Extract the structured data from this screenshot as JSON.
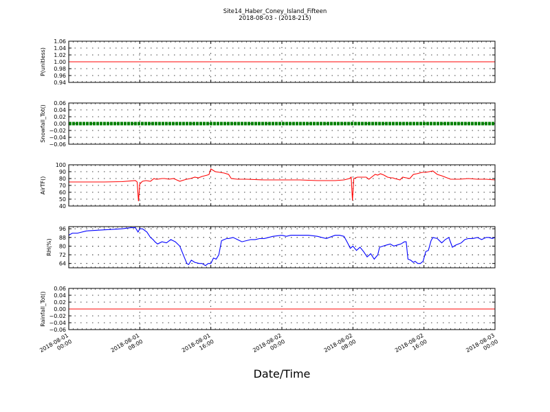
{
  "title": "Site14_Haber_Coney_Island_Fifteen",
  "subtitle": "2018-08-03 - (2018-215)",
  "xlabel": "Date/Time",
  "x_ticks": [
    [
      "2018-08-01",
      "00:00"
    ],
    [
      "2018-08-01",
      "08:00"
    ],
    [
      "2018-08-01",
      "16:00"
    ],
    [
      "2018-08-02",
      "00:00"
    ],
    [
      "2018-08-02",
      "08:00"
    ],
    [
      "2018-08-02",
      "16:00"
    ],
    [
      "2018-08-03",
      "00:00"
    ]
  ],
  "colors": {
    "red": "#ff0000",
    "green": "#008000",
    "blue": "#0000ff"
  },
  "chart_data": [
    {
      "type": "line",
      "ylabel": "P(unitless)",
      "xlim": [
        "2018-08-01 00:00",
        "2018-08-03 00:00"
      ],
      "ylim": [
        0.94,
        1.06
      ],
      "y_ticks": [
        "1.06",
        "1.04",
        "1.02",
        "1.00",
        "0.98",
        "0.96",
        "0.94"
      ],
      "grid": true,
      "color": "#ff0000",
      "marker": "line",
      "x_hours": [
        0,
        48
      ],
      "values": [
        1.0,
        1.0
      ]
    },
    {
      "type": "line",
      "ylabel": "Snowfall_Tot()",
      "xlim": [
        "2018-08-01 00:00",
        "2018-08-03 00:00"
      ],
      "ylim": [
        -0.06,
        0.06
      ],
      "y_ticks": [
        "0.06",
        "0.04",
        "0.02",
        "0.00",
        "−0.02",
        "−0.04",
        "−0.06"
      ],
      "grid": true,
      "color": "#008000",
      "marker": "thick",
      "x_hours": [
        0,
        48
      ],
      "values": [
        0.0,
        0.0
      ]
    },
    {
      "type": "line",
      "ylabel": "AirTF()",
      "xlim": [
        "2018-08-01 00:00",
        "2018-08-03 00:00"
      ],
      "ylim": [
        40,
        100
      ],
      "y_ticks": [
        "100",
        "90",
        "80",
        "70",
        "60",
        "50",
        "40"
      ],
      "grid": true,
      "color": "#ff0000",
      "marker": "line",
      "x_hours": [
        0,
        2,
        4,
        6,
        7.5,
        7.7,
        7.85,
        8.0,
        8.3,
        8.7,
        9.2,
        9.6,
        9.8,
        10.0,
        10.5,
        10.8,
        11.3,
        11.8,
        12.5,
        13.0,
        13.3,
        13.7,
        14.2,
        14.6,
        15.0,
        15.3,
        15.6,
        15.8,
        16.0,
        16.5,
        17.0,
        17.5,
        18.0,
        18.3,
        19.0,
        20.0,
        22.0,
        24.0,
        26.0,
        28.0,
        30.0,
        31.0,
        31.6,
        31.8,
        31.95,
        32.1,
        32.5,
        33.0,
        33.5,
        33.8,
        34.1,
        34.5,
        34.8,
        35.1,
        35.5,
        35.9,
        36.3,
        36.5,
        36.7,
        37.0,
        37.3,
        37.6,
        38.0,
        38.4,
        38.8,
        39.2,
        39.5,
        39.8,
        40.2,
        40.6,
        41.0,
        41.5,
        42.0,
        43.0,
        44.0,
        45.0,
        46.0,
        47.0,
        48.0
      ],
      "values": [
        75,
        75,
        75,
        75.5,
        77,
        75,
        47,
        72,
        76,
        77,
        76,
        80,
        79,
        79,
        80,
        80,
        79,
        80,
        76,
        78,
        79,
        80,
        82,
        81,
        83,
        84,
        85,
        86,
        94,
        90,
        89,
        88,
        86,
        80,
        79,
        79,
        78,
        78,
        78,
        77,
        77,
        78,
        80,
        82,
        48,
        80,
        82,
        82,
        82,
        79,
        82,
        86,
        85,
        87,
        85,
        82,
        81,
        81,
        80,
        79,
        78,
        82,
        81,
        80,
        86,
        87,
        88,
        89,
        89,
        90,
        91,
        86,
        84,
        79,
        79,
        80,
        79,
        79,
        78
      ]
    },
    {
      "type": "line",
      "ylabel": "RH(%)",
      "xlim": [
        "2018-08-01 00:00",
        "2018-08-03 00:00"
      ],
      "ylim": [
        60,
        98
      ],
      "y_ticks": [
        "96",
        "88",
        "80",
        "72",
        "64"
      ],
      "grid": true,
      "color": "#0000ff",
      "marker": "line",
      "x_hours": [
        0,
        0.4,
        1.0,
        2.0,
        4.0,
        6.0,
        7.0,
        7.5,
        7.8,
        8.0,
        8.3,
        8.8,
        9.2,
        9.5,
        9.7,
        10.0,
        10.5,
        11.0,
        11.5,
        12.0,
        12.5,
        13.0,
        13.3,
        13.5,
        13.8,
        14.2,
        14.7,
        15.0,
        15.4,
        15.7,
        16.0,
        16.3,
        16.6,
        16.9,
        17.2,
        17.5,
        17.8,
        18.0,
        18.5,
        19.0,
        19.5,
        20.0,
        20.5,
        21.0,
        21.5,
        22.0,
        23.0,
        24.0,
        24.5,
        25.0,
        26.0,
        27.0,
        28.0,
        29.0,
        30.0,
        30.5,
        31.0,
        31.4,
        31.7,
        32.0,
        32.4,
        32.8,
        33.2,
        33.6,
        34.0,
        34.4,
        34.8,
        35.0,
        35.4,
        35.8,
        36.2,
        36.6,
        37.0,
        37.4,
        37.8,
        38.0,
        38.2,
        38.5,
        38.8,
        39.0,
        39.3,
        39.6,
        39.9,
        40.2,
        40.5,
        40.8,
        41.0,
        41.5,
        42.0,
        42.4,
        42.8,
        43.2,
        43.6,
        43.9,
        44.2,
        44.6,
        45.0,
        45.5,
        46.0,
        46.5,
        47.0,
        47.3,
        47.7,
        48.0
      ],
      "values": [
        90,
        92,
        92,
        94,
        95,
        96,
        97,
        97,
        93,
        96,
        96,
        93,
        88,
        86,
        84,
        82,
        84,
        83,
        86,
        84,
        80,
        70,
        64,
        63,
        67,
        65,
        64,
        64,
        62,
        64,
        64,
        69,
        68,
        72,
        85,
        86,
        87,
        87,
        88,
        86,
        84,
        85,
        86,
        86,
        87,
        87,
        89,
        90,
        89,
        90,
        90,
        90,
        89,
        87,
        90,
        90,
        89,
        83,
        78,
        80,
        76,
        79,
        75,
        70,
        73,
        68,
        72,
        79,
        80,
        81,
        82,
        80,
        81,
        82,
        84,
        84,
        68,
        67,
        65,
        66,
        64,
        64,
        66,
        75,
        76,
        85,
        88,
        87,
        83,
        86,
        88,
        79,
        81,
        82,
        83,
        86,
        87,
        87,
        88,
        86,
        88,
        88,
        87,
        88
      ]
    },
    {
      "type": "line",
      "ylabel": "Rainfall_Tot()",
      "xlim": [
        "2018-08-01 00:00",
        "2018-08-03 00:00"
      ],
      "ylim": [
        -0.06,
        0.06
      ],
      "y_ticks": [
        "0.06",
        "0.04",
        "0.02",
        "0.00",
        "−0.02",
        "−0.04",
        "−0.06"
      ],
      "grid": true,
      "color": "#ff0000",
      "marker": "line",
      "x_hours": [
        0,
        48
      ],
      "values": [
        0.0,
        0.0
      ]
    }
  ]
}
